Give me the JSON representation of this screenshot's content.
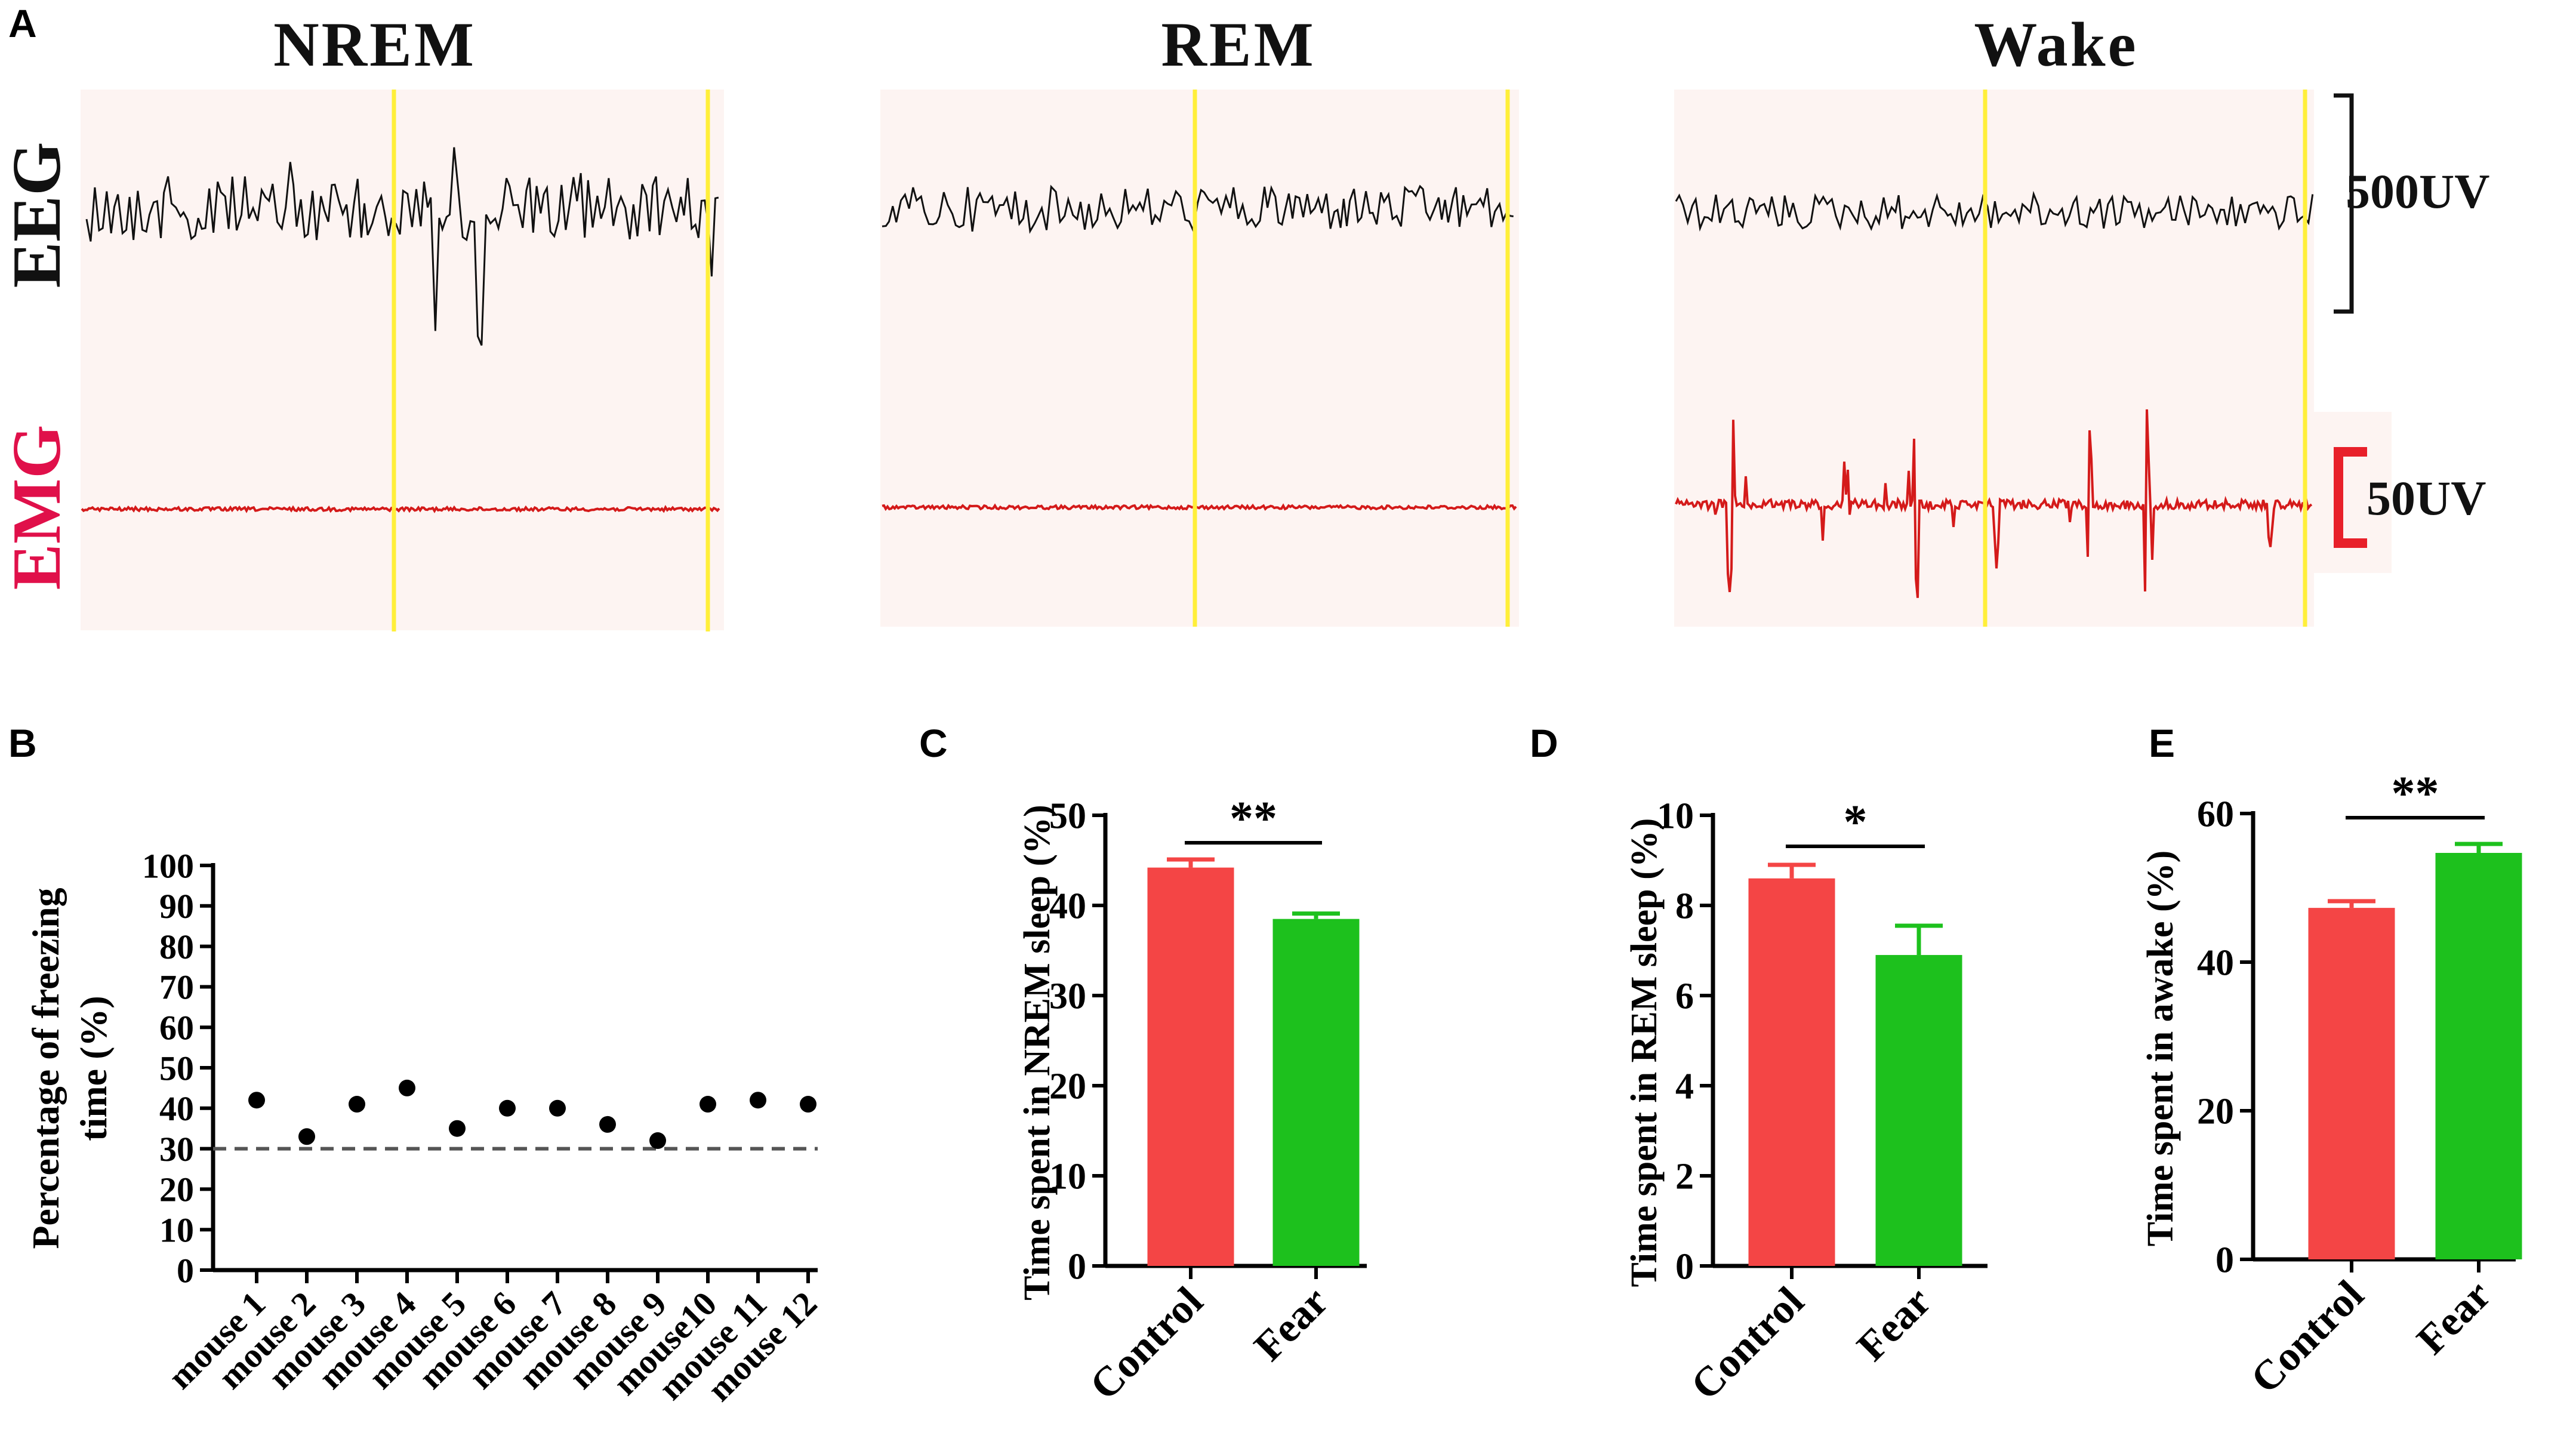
{
  "panel_a": {
    "label": "A",
    "sections": [
      "NREM",
      "REM",
      "Wake"
    ],
    "row_labels": {
      "eeg": "EEG",
      "emg": "EMG"
    },
    "scalebars": {
      "eeg": "500UV",
      "emg": "50UV"
    }
  },
  "colors": {
    "control": "#f44545",
    "fear": "#1dc11d",
    "trace_eeg": "#111111",
    "trace_emg": "#d41a1a",
    "trace_bg": "#fdf4f2",
    "marker": "#ffef3a",
    "emg_label": "#e0104a"
  },
  "chart_data": [
    {
      "id": "B",
      "type": "scatter",
      "panel_label": "B",
      "ylabel": "Percentage of freezing time (%)",
      "ylabel_lines": [
        "Percentage of freezing",
        "time (%)"
      ],
      "categories": [
        "mouse 1",
        "mouse 2",
        "mouse 3",
        "mouse 4",
        "mouse 5",
        "mouse 6",
        "mouse 7",
        "mouse 8",
        "mouse 9",
        "mouse10",
        "mouse 11",
        "mouse 12"
      ],
      "values": [
        42,
        33,
        41,
        45,
        35,
        40,
        40,
        36,
        32,
        41,
        42,
        41
      ],
      "ylim": [
        0,
        100
      ],
      "yticks": [
        0,
        10,
        20,
        30,
        40,
        50,
        60,
        70,
        80,
        90,
        100
      ],
      "reference_line": 30
    },
    {
      "id": "C",
      "type": "bar",
      "panel_label": "C",
      "ylabel": "Time spent in NREM sleep (%)",
      "categories": [
        "Control",
        "Fear"
      ],
      "values": [
        44.2,
        38.5
      ],
      "errors": [
        0.9,
        0.6
      ],
      "ylim": [
        0,
        50
      ],
      "yticks": [
        0,
        10,
        20,
        30,
        40,
        50
      ],
      "significance": "**"
    },
    {
      "id": "D",
      "type": "bar",
      "panel_label": "D",
      "ylabel": "Time spent in REM sleep (%)",
      "categories": [
        "Control",
        "Fear"
      ],
      "values": [
        8.6,
        6.9
      ],
      "errors": [
        0.3,
        0.65
      ],
      "ylim": [
        0,
        10
      ],
      "yticks": [
        0,
        2,
        4,
        6,
        8,
        10
      ],
      "significance": "*"
    },
    {
      "id": "E",
      "type": "bar",
      "panel_label": "E",
      "ylabel": "Time spent in awake (%)",
      "categories": [
        "Control",
        "Fear"
      ],
      "values": [
        47.3,
        54.7
      ],
      "errors": [
        0.9,
        1.2
      ],
      "ylim": [
        0,
        60
      ],
      "yticks": [
        0,
        20,
        40,
        60
      ],
      "significance": "**"
    }
  ]
}
